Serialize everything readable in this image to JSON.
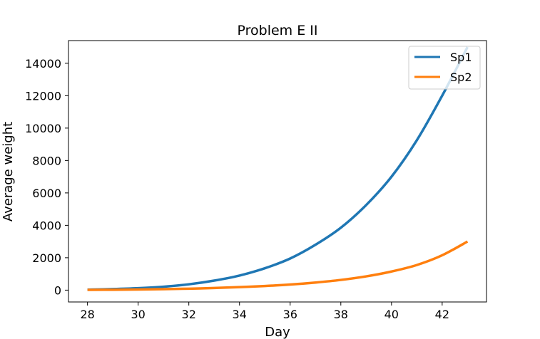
{
  "chart_data": {
    "type": "line",
    "title": "Problem E II",
    "xlabel": "Day",
    "ylabel": "Average weight",
    "xlim": [
      27.25,
      43.75
    ],
    "ylim": [
      -730,
      15400
    ],
    "x_ticks": [
      28,
      30,
      32,
      34,
      36,
      38,
      40,
      42
    ],
    "y_ticks": [
      0,
      2000,
      4000,
      6000,
      8000,
      10000,
      12000,
      14000
    ],
    "grid": false,
    "legend_position": "top-right",
    "x": [
      28,
      29,
      30,
      31,
      32,
      33,
      34,
      35,
      36,
      37,
      38,
      39,
      40,
      41,
      42,
      43
    ],
    "series": [
      {
        "name": "Sp1",
        "color": "#1f77b4",
        "values": [
          30,
          65,
          120,
          210,
          360,
          590,
          900,
          1350,
          1950,
          2800,
          3850,
          5250,
          7000,
          9250,
          12000,
          15000
        ]
      },
      {
        "name": "Sp2",
        "color": "#ff7f0e",
        "values": [
          15,
          25,
          40,
          60,
          90,
          130,
          185,
          255,
          345,
          470,
          630,
          850,
          1150,
          1550,
          2150,
          3000
        ]
      }
    ]
  }
}
